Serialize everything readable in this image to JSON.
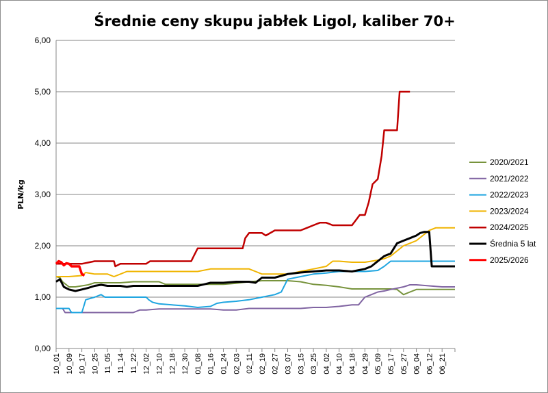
{
  "chart_data": {
    "type": "line",
    "title": "Średnie ceny skupu jabłek Ligol, kaliber 70+",
    "xlabel": "",
    "ylabel": "PLN/kg",
    "ylim": [
      0,
      6
    ],
    "yticks": [
      "0,00",
      "1,00",
      "2,00",
      "3,00",
      "4,00",
      "5,00",
      "6,00"
    ],
    "grid": true,
    "legend_position": "right",
    "categories": [
      "10_01",
      "10_09",
      "10_17",
      "10_25",
      "11_05",
      "11_14",
      "11_22",
      "12_02",
      "12_10",
      "12_18",
      "12_30",
      "01_08",
      "01_16",
      "01_24",
      "02_03",
      "02_11",
      "02_19",
      "02_27",
      "03_07",
      "03_15",
      "03_25",
      "04_02",
      "04_10",
      "04_18",
      "04_29",
      "05_09",
      "05_17",
      "05_27",
      "06_04",
      "06_12",
      "06_21"
    ],
    "series": [
      {
        "name": "2020/2021",
        "color": "#77933c",
        "width": 2,
        "points": [
          [
            0,
            1.4
          ],
          [
            0.3,
            1.38
          ],
          [
            0.5,
            1.3
          ],
          [
            1,
            1.2
          ],
          [
            1.5,
            1.2
          ],
          [
            2,
            1.22
          ],
          [
            2.5,
            1.24
          ],
          [
            3,
            1.28
          ],
          [
            4,
            1.28
          ],
          [
            5,
            1.28
          ],
          [
            6,
            1.3
          ],
          [
            7,
            1.3
          ],
          [
            8,
            1.3
          ],
          [
            8.5,
            1.25
          ],
          [
            9,
            1.25
          ],
          [
            10,
            1.25
          ],
          [
            11,
            1.25
          ],
          [
            12,
            1.25
          ],
          [
            13,
            1.25
          ],
          [
            14,
            1.27
          ],
          [
            15,
            1.3
          ],
          [
            16,
            1.32
          ],
          [
            17,
            1.32
          ],
          [
            18,
            1.32
          ],
          [
            19,
            1.3
          ],
          [
            20,
            1.25
          ],
          [
            21,
            1.23
          ],
          [
            22,
            1.2
          ],
          [
            23,
            1.16
          ],
          [
            24,
            1.16
          ],
          [
            25,
            1.16
          ],
          [
            26,
            1.16
          ],
          [
            26.5,
            1.15
          ],
          [
            27,
            1.05
          ],
          [
            27.5,
            1.1
          ],
          [
            28,
            1.15
          ],
          [
            29,
            1.15
          ],
          [
            30,
            1.15
          ],
          [
            31,
            1.15
          ]
        ]
      },
      {
        "name": "2021/2022",
        "color": "#8064a2",
        "width": 2,
        "points": [
          [
            0,
            0.78
          ],
          [
            0.5,
            0.78
          ],
          [
            0.7,
            0.7
          ],
          [
            2,
            0.7
          ],
          [
            3,
            0.7
          ],
          [
            4,
            0.7
          ],
          [
            5,
            0.7
          ],
          [
            6,
            0.7
          ],
          [
            6.5,
            0.75
          ],
          [
            7,
            0.75
          ],
          [
            8,
            0.77
          ],
          [
            9,
            0.77
          ],
          [
            10,
            0.77
          ],
          [
            11,
            0.77
          ],
          [
            12,
            0.77
          ],
          [
            13,
            0.75
          ],
          [
            14,
            0.75
          ],
          [
            15,
            0.78
          ],
          [
            16,
            0.78
          ],
          [
            17,
            0.78
          ],
          [
            18,
            0.78
          ],
          [
            19,
            0.78
          ],
          [
            20,
            0.8
          ],
          [
            21,
            0.8
          ],
          [
            22,
            0.82
          ],
          [
            23,
            0.85
          ],
          [
            23.5,
            0.85
          ],
          [
            24,
            1.0
          ],
          [
            24.5,
            1.05
          ],
          [
            25,
            1.1
          ],
          [
            25.5,
            1.12
          ],
          [
            26,
            1.15
          ],
          [
            27,
            1.2
          ],
          [
            27.5,
            1.24
          ],
          [
            28,
            1.24
          ],
          [
            29,
            1.22
          ],
          [
            30,
            1.2
          ],
          [
            31,
            1.2
          ]
        ]
      },
      {
        "name": "2022/2023",
        "color": "#1ea5e0",
        "width": 2,
        "points": [
          [
            0,
            0.78
          ],
          [
            1,
            0.78
          ],
          [
            1.2,
            0.7
          ],
          [
            2,
            0.7
          ],
          [
            2.1,
            0.78
          ],
          [
            2.3,
            0.95
          ],
          [
            3,
            1.0
          ],
          [
            3.5,
            1.05
          ],
          [
            3.8,
            1.0
          ],
          [
            4,
            1.0
          ],
          [
            5,
            1.0
          ],
          [
            6,
            1.0
          ],
          [
            7,
            1.0
          ],
          [
            7.2,
            0.95
          ],
          [
            7.5,
            0.9
          ],
          [
            8,
            0.87
          ],
          [
            9,
            0.85
          ],
          [
            10,
            0.83
          ],
          [
            11,
            0.8
          ],
          [
            12,
            0.82
          ],
          [
            12.5,
            0.88
          ],
          [
            13,
            0.9
          ],
          [
            14,
            0.92
          ],
          [
            15,
            0.95
          ],
          [
            16,
            1.0
          ],
          [
            17,
            1.05
          ],
          [
            17.5,
            1.1
          ],
          [
            18,
            1.35
          ],
          [
            19,
            1.4
          ],
          [
            20,
            1.45
          ],
          [
            21,
            1.47
          ],
          [
            22,
            1.5
          ],
          [
            23,
            1.5
          ],
          [
            24,
            1.5
          ],
          [
            25,
            1.52
          ],
          [
            25.5,
            1.6
          ],
          [
            26,
            1.7
          ],
          [
            27,
            1.7
          ],
          [
            28,
            1.7
          ],
          [
            29,
            1.7
          ],
          [
            30,
            1.7
          ],
          [
            31,
            1.7
          ]
        ]
      },
      {
        "name": "2023/2024",
        "color": "#f0b400",
        "width": 2,
        "points": [
          [
            0,
            1.4
          ],
          [
            1,
            1.4
          ],
          [
            2,
            1.42
          ],
          [
            2.3,
            1.48
          ],
          [
            3,
            1.45
          ],
          [
            4,
            1.45
          ],
          [
            4.5,
            1.4
          ],
          [
            5,
            1.45
          ],
          [
            5.5,
            1.5
          ],
          [
            6,
            1.5
          ],
          [
            7,
            1.5
          ],
          [
            8,
            1.5
          ],
          [
            9,
            1.5
          ],
          [
            10,
            1.5
          ],
          [
            11,
            1.5
          ],
          [
            12,
            1.55
          ],
          [
            13,
            1.55
          ],
          [
            14,
            1.55
          ],
          [
            15,
            1.55
          ],
          [
            15.5,
            1.5
          ],
          [
            16,
            1.45
          ],
          [
            17,
            1.45
          ],
          [
            18,
            1.45
          ],
          [
            19,
            1.5
          ],
          [
            20,
            1.55
          ],
          [
            21,
            1.6
          ],
          [
            21.5,
            1.7
          ],
          [
            22,
            1.7
          ],
          [
            23,
            1.68
          ],
          [
            24,
            1.68
          ],
          [
            24.5,
            1.7
          ],
          [
            25,
            1.72
          ],
          [
            25.5,
            1.75
          ],
          [
            26,
            1.8
          ],
          [
            26.5,
            1.9
          ],
          [
            27,
            2.0
          ],
          [
            27.5,
            2.05
          ],
          [
            28,
            2.1
          ],
          [
            28.5,
            2.2
          ],
          [
            29,
            2.3
          ],
          [
            29.5,
            2.35
          ],
          [
            30,
            2.35
          ],
          [
            31,
            2.35
          ]
        ]
      },
      {
        "name": "2024/2025",
        "color": "#c00000",
        "width": 2.5,
        "points": [
          [
            0,
            1.65
          ],
          [
            1,
            1.65
          ],
          [
            2,
            1.65
          ],
          [
            3,
            1.7
          ],
          [
            4,
            1.7
          ],
          [
            4.5,
            1.7
          ],
          [
            4.6,
            1.6
          ],
          [
            5,
            1.65
          ],
          [
            6,
            1.65
          ],
          [
            7,
            1.65
          ],
          [
            7.3,
            1.7
          ],
          [
            8,
            1.7
          ],
          [
            9,
            1.7
          ],
          [
            10,
            1.7
          ],
          [
            10.5,
            1.7
          ],
          [
            10.7,
            1.8
          ],
          [
            11,
            1.95
          ],
          [
            12,
            1.95
          ],
          [
            13,
            1.95
          ],
          [
            14,
            1.95
          ],
          [
            14.5,
            1.95
          ],
          [
            14.7,
            2.15
          ],
          [
            15,
            2.25
          ],
          [
            15.5,
            2.25
          ],
          [
            16,
            2.25
          ],
          [
            16.3,
            2.2
          ],
          [
            17,
            2.3
          ],
          [
            18,
            2.3
          ],
          [
            19,
            2.3
          ],
          [
            19.5,
            2.35
          ],
          [
            20,
            2.4
          ],
          [
            20.5,
            2.45
          ],
          [
            21,
            2.45
          ],
          [
            21.5,
            2.4
          ],
          [
            22,
            2.4
          ],
          [
            23,
            2.4
          ],
          [
            23.3,
            2.5
          ],
          [
            23.6,
            2.6
          ],
          [
            24,
            2.6
          ],
          [
            24.3,
            2.85
          ],
          [
            24.6,
            3.2
          ],
          [
            25,
            3.3
          ],
          [
            25.3,
            3.75
          ],
          [
            25.5,
            4.25
          ],
          [
            26,
            4.25
          ],
          [
            26.5,
            4.25
          ],
          [
            26.7,
            5.0
          ],
          [
            27,
            5.0
          ],
          [
            27.5,
            5.0
          ]
        ]
      },
      {
        "name": "Średnia 5 lat",
        "color": "#000000",
        "width": 3,
        "points": [
          [
            0,
            1.3
          ],
          [
            0.3,
            1.35
          ],
          [
            0.6,
            1.2
          ],
          [
            1,
            1.15
          ],
          [
            1.5,
            1.12
          ],
          [
            2,
            1.15
          ],
          [
            2.5,
            1.18
          ],
          [
            3,
            1.22
          ],
          [
            3.5,
            1.24
          ],
          [
            4,
            1.22
          ],
          [
            5,
            1.22
          ],
          [
            5.5,
            1.2
          ],
          [
            6,
            1.22
          ],
          [
            7,
            1.22
          ],
          [
            8,
            1.22
          ],
          [
            9,
            1.22
          ],
          [
            10,
            1.22
          ],
          [
            11,
            1.22
          ],
          [
            11.5,
            1.25
          ],
          [
            12,
            1.28
          ],
          [
            13,
            1.28
          ],
          [
            14,
            1.3
          ],
          [
            15,
            1.3
          ],
          [
            15.5,
            1.28
          ],
          [
            16,
            1.38
          ],
          [
            17,
            1.38
          ],
          [
            18,
            1.45
          ],
          [
            19,
            1.48
          ],
          [
            20,
            1.5
          ],
          [
            21,
            1.52
          ],
          [
            22,
            1.52
          ],
          [
            23,
            1.5
          ],
          [
            24,
            1.55
          ],
          [
            24.5,
            1.6
          ],
          [
            25,
            1.7
          ],
          [
            25.5,
            1.8
          ],
          [
            26,
            1.85
          ],
          [
            26.5,
            2.05
          ],
          [
            27,
            2.1
          ],
          [
            27.5,
            2.15
          ],
          [
            28,
            2.2
          ],
          [
            28.3,
            2.25
          ],
          [
            28.6,
            2.27
          ],
          [
            29,
            2.27
          ],
          [
            29.2,
            1.6
          ],
          [
            29.5,
            1.6
          ],
          [
            30,
            1.6
          ],
          [
            31,
            1.6
          ]
        ]
      },
      {
        "name": "2025/2026",
        "color": "#ff0000",
        "width": 3.5,
        "points": [
          [
            0,
            1.65
          ],
          [
            0.2,
            1.7
          ],
          [
            0.4,
            1.68
          ],
          [
            0.6,
            1.62
          ],
          [
            0.8,
            1.66
          ],
          [
            1,
            1.65
          ],
          [
            1.2,
            1.6
          ],
          [
            1.5,
            1.6
          ],
          [
            1.8,
            1.6
          ],
          [
            2,
            1.45
          ],
          [
            2.2,
            1.42
          ]
        ]
      }
    ]
  }
}
